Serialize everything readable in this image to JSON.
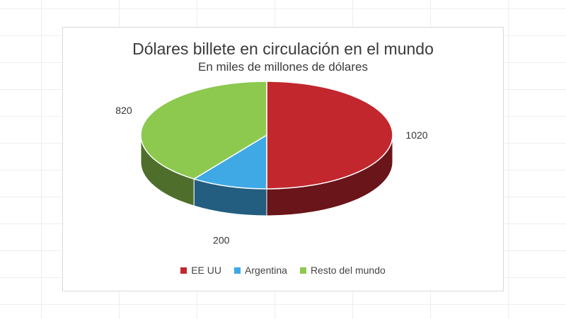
{
  "chart_data": {
    "type": "pie",
    "title": "Dólares billete en circulación en el mundo",
    "subtitle": "En miles de millones de dólares",
    "categories": [
      "EE UU",
      "Argentina",
      "Resto del mundo"
    ],
    "values": [
      1020,
      200,
      820
    ],
    "data_labels": [
      "1020",
      "200",
      "820"
    ],
    "colors": [
      "#c1272d",
      "#3fa9e6",
      "#8dc94f"
    ],
    "legend_position": "bottom",
    "style": "3d"
  }
}
